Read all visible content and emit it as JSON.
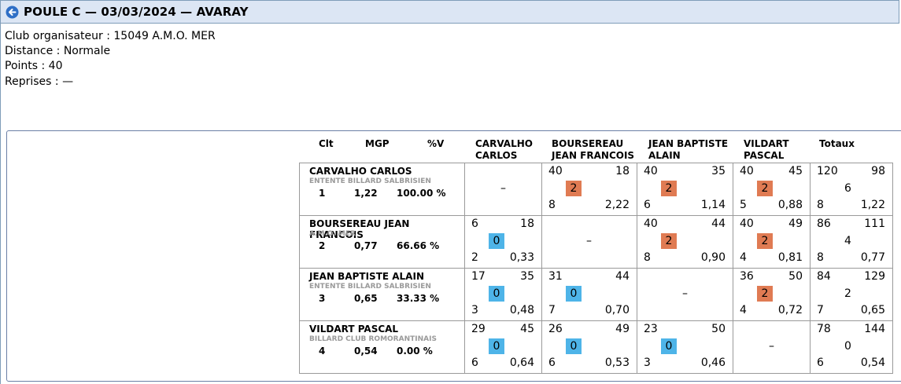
{
  "header": {
    "title": "POULE C — 03/03/2024 — AVARAY"
  },
  "info": {
    "club": "Club organisateur : 15049 A.M.O. MER",
    "distance": "Distance : Normale",
    "points": "Points : 40",
    "reprises": "Reprises : —"
  },
  "columns": {
    "clt": "Clt",
    "mgp": "MGP",
    "pctv": "%V",
    "p1": [
      "CARVALHO",
      "CARLOS"
    ],
    "p2": [
      "BOURSEREAU",
      "JEAN FRANCOIS"
    ],
    "p3": [
      "JEAN BAPTISTE",
      "ALAIN"
    ],
    "p4": [
      "VILDART",
      "PASCAL"
    ],
    "totaux": "Totaux"
  },
  "colors": {
    "win": "#e07b53",
    "loss": "#4eb4e8",
    "header_bg": "#dce6f4"
  },
  "rows": [
    {
      "name": "CARVALHO CARLOS",
      "club": "ENTENTE BILLARD SALBRISIEN",
      "clt": "1",
      "mgp": "1,22",
      "pctv": "100.00 %",
      "cells": [
        null,
        {
          "pts": "40",
          "opp": "18",
          "mp": "2",
          "rep": "8",
          "moy": "2,22",
          "win": true
        },
        {
          "pts": "40",
          "opp": "35",
          "mp": "2",
          "rep": "6",
          "moy": "1,14",
          "win": true
        },
        {
          "pts": "40",
          "opp": "45",
          "mp": "2",
          "rep": "5",
          "moy": "0,88",
          "win": true
        }
      ],
      "total": {
        "pts": "120",
        "opp": "98",
        "mp": "6",
        "rep": "8",
        "moy": "1,22"
      }
    },
    {
      "name": "BOURSEREAU JEAN FRANCOIS",
      "club": "A.M.O. MER",
      "clt": "2",
      "mgp": "0,77",
      "pctv": "66.66 %",
      "cells": [
        {
          "pts": "6",
          "opp": "18",
          "mp": "0",
          "rep": "2",
          "moy": "0,33",
          "win": false
        },
        null,
        {
          "pts": "40",
          "opp": "44",
          "mp": "2",
          "rep": "8",
          "moy": "0,90",
          "win": true
        },
        {
          "pts": "40",
          "opp": "49",
          "mp": "2",
          "rep": "4",
          "moy": "0,81",
          "win": true
        }
      ],
      "total": {
        "pts": "86",
        "opp": "111",
        "mp": "4",
        "rep": "8",
        "moy": "0,77"
      }
    },
    {
      "name": "JEAN BAPTISTE ALAIN",
      "club": "ENTENTE BILLARD SALBRISIEN",
      "clt": "3",
      "mgp": "0,65",
      "pctv": "33.33 %",
      "cells": [
        {
          "pts": "17",
          "opp": "35",
          "mp": "0",
          "rep": "3",
          "moy": "0,48",
          "win": false
        },
        {
          "pts": "31",
          "opp": "44",
          "mp": "0",
          "rep": "7",
          "moy": "0,70",
          "win": false
        },
        null,
        {
          "pts": "36",
          "opp": "50",
          "mp": "2",
          "rep": "4",
          "moy": "0,72",
          "win": true
        }
      ],
      "total": {
        "pts": "84",
        "opp": "129",
        "mp": "2",
        "rep": "7",
        "moy": "0,65"
      }
    },
    {
      "name": "VILDART PASCAL",
      "club": "BILLARD CLUB ROMORANTINAIS",
      "clt": "4",
      "mgp": "0,54",
      "pctv": "0.00 %",
      "cells": [
        {
          "pts": "29",
          "opp": "45",
          "mp": "0",
          "rep": "6",
          "moy": "0,64",
          "win": false
        },
        {
          "pts": "26",
          "opp": "49",
          "mp": "0",
          "rep": "6",
          "moy": "0,53",
          "win": false
        },
        {
          "pts": "23",
          "opp": "50",
          "mp": "0",
          "rep": "3",
          "moy": "0,46",
          "win": false
        },
        null
      ],
      "total": {
        "pts": "78",
        "opp": "144",
        "mp": "0",
        "rep": "6",
        "moy": "0,54"
      }
    }
  ],
  "empty_cell": "–"
}
